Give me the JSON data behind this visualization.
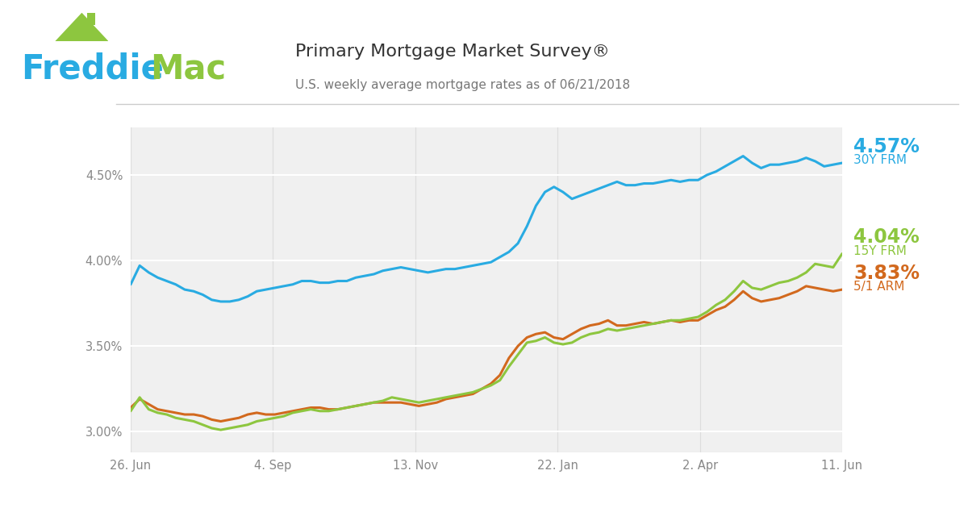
{
  "title": "Primary Mortgage Market Survey®",
  "subtitle": "U.S. weekly average mortgage rates as of 06/21/2018",
  "freddie_blue": "#29ABE2",
  "freddie_green": "#8DC63F",
  "line_30y_color": "#29ABE2",
  "line_15y_color": "#8DC63F",
  "line_arm_color": "#D2691E",
  "label_30y": "4.57%",
  "label_30y_sub": "30Y FRM",
  "label_15y": "4.04%",
  "label_15y_sub": "15Y FRM",
  "label_arm": "3.83%",
  "label_arm_sub": "5/1 ARM",
  "ylim": [
    2.88,
    4.78
  ],
  "yticks": [
    3.0,
    3.5,
    4.0,
    4.5
  ],
  "ytick_labels": [
    "3.00%",
    "3.50%",
    "4.00%",
    "4.50%"
  ],
  "xtick_labels": [
    "26. Jun",
    "4. Sep",
    "13. Nov",
    "22. Jan",
    "2. Apr",
    "11. Jun"
  ],
  "bg_color": "#FFFFFF",
  "plot_bg_color": "#F0F0F0",
  "grid_color": "#FFFFFF",
  "axis_color": "#CCCCCC",
  "tick_color": "#888888",
  "data_30y": [
    3.86,
    3.97,
    3.93,
    3.9,
    3.88,
    3.86,
    3.83,
    3.82,
    3.8,
    3.77,
    3.76,
    3.76,
    3.77,
    3.79,
    3.82,
    3.83,
    3.84,
    3.85,
    3.86,
    3.88,
    3.88,
    3.87,
    3.87,
    3.88,
    3.88,
    3.9,
    3.91,
    3.92,
    3.94,
    3.95,
    3.96,
    3.95,
    3.94,
    3.93,
    3.94,
    3.95,
    3.95,
    3.96,
    3.97,
    3.98,
    3.99,
    4.02,
    4.05,
    4.1,
    4.2,
    4.32,
    4.4,
    4.43,
    4.4,
    4.36,
    4.38,
    4.4,
    4.42,
    4.44,
    4.46,
    4.44,
    4.44,
    4.45,
    4.45,
    4.46,
    4.47,
    4.46,
    4.47,
    4.47,
    4.5,
    4.52,
    4.55,
    4.58,
    4.61,
    4.57,
    4.54,
    4.56,
    4.56,
    4.57,
    4.58,
    4.6,
    4.58,
    4.55,
    4.56,
    4.57
  ],
  "data_15y": [
    3.12,
    3.2,
    3.13,
    3.11,
    3.1,
    3.08,
    3.07,
    3.06,
    3.04,
    3.02,
    3.01,
    3.02,
    3.03,
    3.04,
    3.06,
    3.07,
    3.08,
    3.09,
    3.11,
    3.12,
    3.13,
    3.12,
    3.12,
    3.13,
    3.14,
    3.15,
    3.16,
    3.17,
    3.18,
    3.2,
    3.19,
    3.18,
    3.17,
    3.18,
    3.19,
    3.2,
    3.21,
    3.22,
    3.23,
    3.25,
    3.27,
    3.3,
    3.38,
    3.45,
    3.52,
    3.53,
    3.55,
    3.52,
    3.51,
    3.52,
    3.55,
    3.57,
    3.58,
    3.6,
    3.59,
    3.6,
    3.61,
    3.62,
    3.63,
    3.64,
    3.65,
    3.65,
    3.66,
    3.67,
    3.7,
    3.74,
    3.77,
    3.82,
    3.88,
    3.84,
    3.83,
    3.85,
    3.87,
    3.88,
    3.9,
    3.93,
    3.98,
    3.97,
    3.96,
    4.04
  ],
  "data_arm": [
    3.14,
    3.19,
    3.16,
    3.13,
    3.12,
    3.11,
    3.1,
    3.1,
    3.09,
    3.07,
    3.06,
    3.07,
    3.08,
    3.1,
    3.11,
    3.1,
    3.1,
    3.11,
    3.12,
    3.13,
    3.14,
    3.14,
    3.13,
    3.13,
    3.14,
    3.15,
    3.16,
    3.17,
    3.17,
    3.17,
    3.17,
    3.16,
    3.15,
    3.16,
    3.17,
    3.19,
    3.2,
    3.21,
    3.22,
    3.25,
    3.28,
    3.33,
    3.43,
    3.5,
    3.55,
    3.57,
    3.58,
    3.55,
    3.54,
    3.57,
    3.6,
    3.62,
    3.63,
    3.65,
    3.62,
    3.62,
    3.63,
    3.64,
    3.63,
    3.64,
    3.65,
    3.64,
    3.65,
    3.65,
    3.68,
    3.71,
    3.73,
    3.77,
    3.82,
    3.78,
    3.76,
    3.77,
    3.78,
    3.8,
    3.82,
    3.85,
    3.84,
    3.83,
    3.82,
    3.83
  ]
}
